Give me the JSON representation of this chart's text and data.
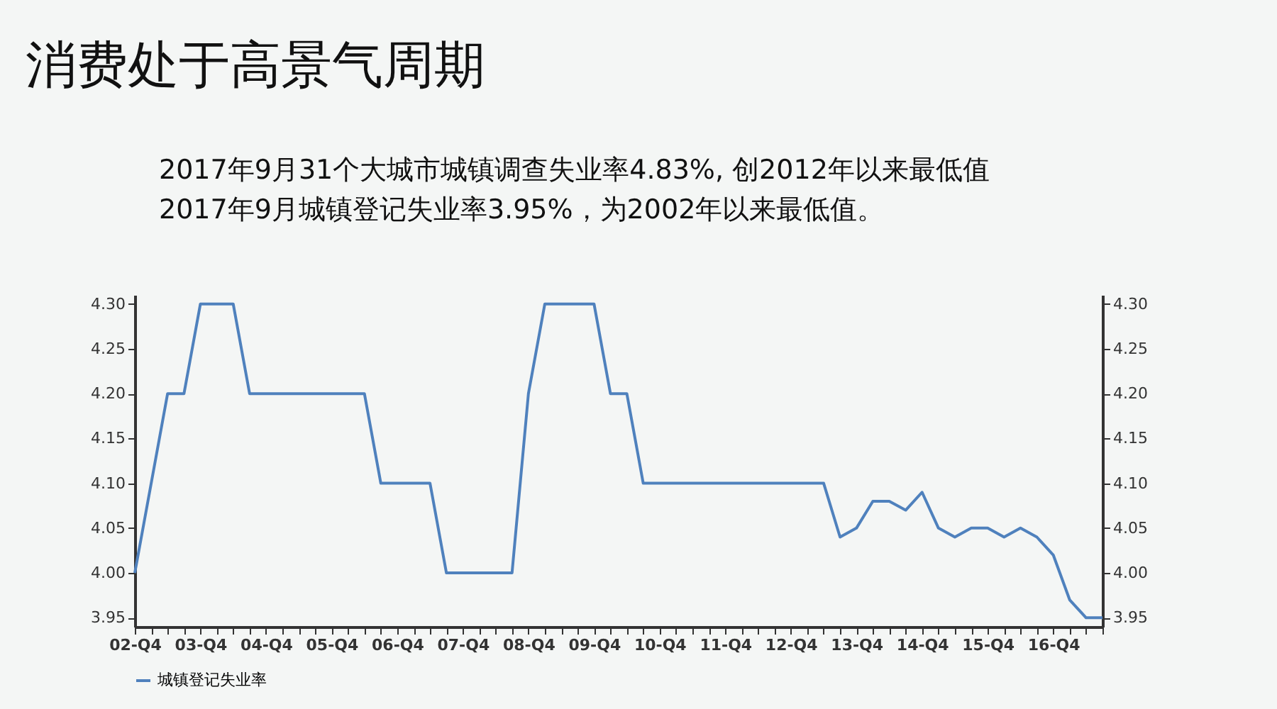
{
  "chart_data": {
    "type": "line",
    "title": "消费处于高景气周期",
    "subtitle": "2017年9月31个大城市城镇调查失业率4.83%, 创2012年以来最低值",
    "annotations": [
      "2017年9月城镇登记失业率3.95%，为2002年以来最低值。"
    ],
    "categories": [
      "02-Q4",
      null,
      null,
      null,
      "03-Q4",
      null,
      null,
      null,
      "04-Q4",
      null,
      null,
      null,
      "05-Q4",
      null,
      null,
      null,
      "06-Q4",
      null,
      null,
      null,
      "07-Q4",
      null,
      null,
      null,
      "08-Q4",
      null,
      null,
      null,
      "09-Q4",
      null,
      null,
      null,
      "10-Q4",
      null,
      null,
      null,
      "11-Q4",
      null,
      null,
      null,
      "12-Q4",
      null,
      null,
      null,
      "13-Q4",
      null,
      null,
      null,
      "14-Q4",
      null,
      null,
      null,
      "15-Q4",
      null,
      null,
      null,
      "16-Q4",
      null,
      null,
      null
    ],
    "series": [
      {
        "name": "城镇登记失业率",
        "color": "#4f81bd",
        "values": [
          4.0,
          4.1,
          4.2,
          4.2,
          4.3,
          4.3,
          4.3,
          4.2,
          4.2,
          4.2,
          4.2,
          4.2,
          4.2,
          4.2,
          4.2,
          4.1,
          4.1,
          4.1,
          4.1,
          4.0,
          4.0,
          4.0,
          4.0,
          4.0,
          4.2,
          4.3,
          4.3,
          4.3,
          4.3,
          4.2,
          4.2,
          4.1,
          4.1,
          4.1,
          4.1,
          4.1,
          4.1,
          4.1,
          4.1,
          4.1,
          4.1,
          4.1,
          4.1,
          4.04,
          4.05,
          4.08,
          4.08,
          4.07,
          4.09,
          4.05,
          4.04,
          4.05,
          4.05,
          4.04,
          4.05,
          4.04,
          4.02,
          3.97,
          3.95,
          3.95
        ]
      }
    ],
    "ylim": [
      3.94,
      4.31
    ],
    "yticks": [
      {
        "value": 3.95,
        "label": "3.95"
      },
      {
        "value": 4.0,
        "label": "4.00"
      },
      {
        "value": 4.05,
        "label": "4.05"
      },
      {
        "value": 4.1,
        "label": "4.10"
      },
      {
        "value": 4.15,
        "label": "4.15"
      },
      {
        "value": 4.2,
        "label": "4.20"
      },
      {
        "value": 4.25,
        "label": "4.25"
      },
      {
        "value": 4.3,
        "label": "4.30"
      }
    ],
    "y2lim": [
      3.94,
      4.31
    ],
    "y2ticks": [
      {
        "value": 3.95,
        "label": "3.95"
      },
      {
        "value": 4.0,
        "label": "4.00"
      },
      {
        "value": 4.05,
        "label": "4.05"
      },
      {
        "value": 4.1,
        "label": "4.10"
      },
      {
        "value": 4.15,
        "label": "4.15"
      },
      {
        "value": 4.2,
        "label": "4.20"
      },
      {
        "value": 4.25,
        "label": "4.25"
      },
      {
        "value": 4.3,
        "label": "4.30"
      }
    ],
    "grid": false,
    "legend": "bottom",
    "marker": "none",
    "line_style": "solid"
  }
}
